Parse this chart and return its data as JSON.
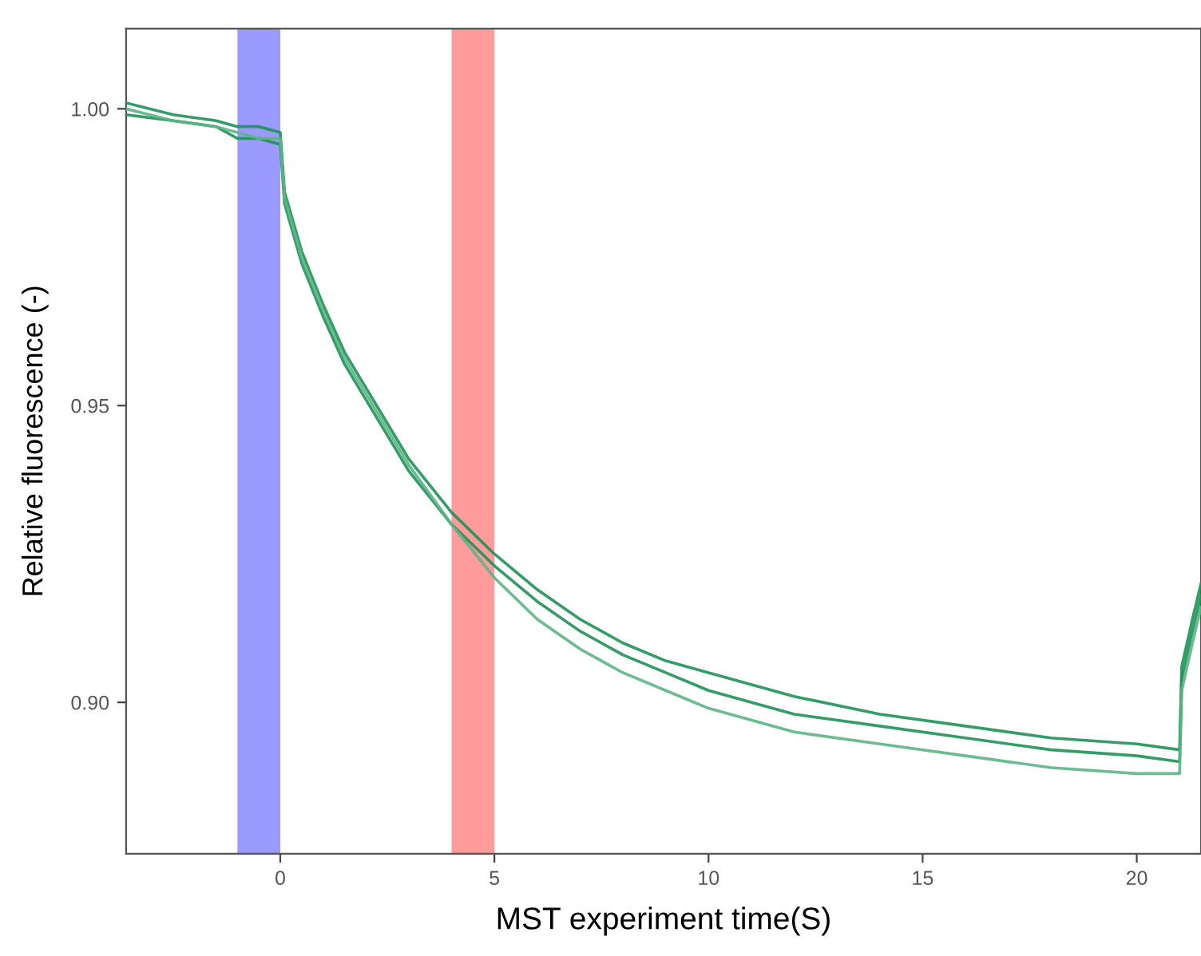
{
  "chart_data": {
    "type": "line",
    "xlabel": "MST experiment time(S)",
    "ylabel": "Relative fluorescence (-)",
    "xlim": [
      -3.6,
      21.5
    ],
    "xticks": [
      0,
      5,
      10,
      15,
      20
    ],
    "ylim": [
      0.8745,
      1.0135
    ],
    "yticks": [
      {
        "value": 0.9,
        "label": "0.90"
      },
      {
        "value": 0.95,
        "label": "0.95"
      },
      {
        "value": 1.0,
        "label": "1.00"
      }
    ],
    "grid": false,
    "marker": "none",
    "line_style": "solid",
    "bands": [
      {
        "axis": "x",
        "from": -1,
        "to": 0,
        "color": "#9b9bff"
      },
      {
        "axis": "x",
        "from": 4,
        "to": 5,
        "color": "#ff9b9b"
      }
    ],
    "series": [
      {
        "color": "#1e9155",
        "x": [
          -3.6,
          -2.5,
          -1.5,
          -1,
          -0.5,
          0,
          0.1,
          0.5,
          1,
          1.5,
          2,
          3,
          4,
          5,
          6,
          7,
          8,
          9,
          10,
          12,
          14,
          16,
          18,
          20,
          21,
          21.05,
          21.3,
          21.5
        ],
        "values": [
          1.001,
          0.999,
          0.998,
          0.997,
          0.997,
          0.996,
          0.986,
          0.976,
          0.967,
          0.959,
          0.953,
          0.941,
          0.932,
          0.925,
          0.919,
          0.914,
          0.91,
          0.907,
          0.905,
          0.901,
          0.898,
          0.896,
          0.894,
          0.893,
          0.892,
          0.906,
          0.914,
          0.92
        ]
      },
      {
        "color": "#1e9155",
        "x": [
          -3.6,
          -2.5,
          -1.5,
          -1,
          -0.5,
          0,
          0.1,
          0.5,
          1,
          1.5,
          2,
          3,
          4,
          5,
          6,
          7,
          8,
          9,
          10,
          12,
          14,
          16,
          18,
          20,
          21,
          21.05,
          21.3,
          21.5
        ],
        "values": [
          0.999,
          0.998,
          0.997,
          0.995,
          0.995,
          0.994,
          0.984,
          0.974,
          0.965,
          0.957,
          0.951,
          0.939,
          0.93,
          0.923,
          0.917,
          0.912,
          0.908,
          0.905,
          0.902,
          0.898,
          0.896,
          0.894,
          0.892,
          0.891,
          0.89,
          0.904,
          0.912,
          0.918
        ]
      },
      {
        "color": "#5cb585",
        "x": [
          -3.6,
          -2.5,
          -1.5,
          -1,
          -0.5,
          0,
          0.1,
          0.5,
          1,
          1.5,
          2,
          3,
          4,
          5,
          6,
          7,
          8,
          9,
          10,
          12,
          14,
          16,
          18,
          20,
          21,
          21.05,
          21.3,
          21.5
        ],
        "values": [
          1.0,
          0.998,
          0.997,
          0.996,
          0.995,
          0.995,
          0.985,
          0.975,
          0.966,
          0.958,
          0.952,
          0.94,
          0.93,
          0.921,
          0.914,
          0.909,
          0.905,
          0.902,
          0.899,
          0.895,
          0.893,
          0.891,
          0.889,
          0.888,
          0.888,
          0.902,
          0.91,
          0.916
        ]
      }
    ]
  }
}
